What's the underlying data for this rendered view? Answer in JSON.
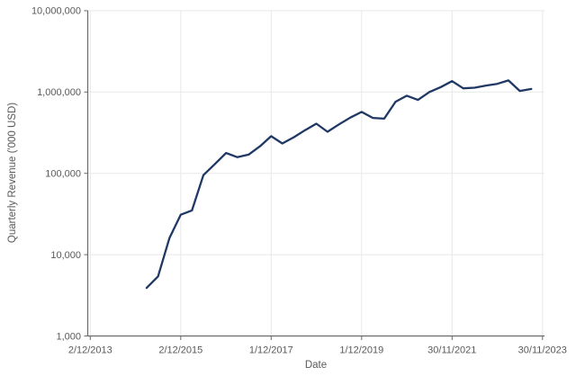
{
  "chart_data": {
    "type": "line",
    "title": "",
    "xlabel": "Date",
    "ylabel": "Quarterly Revenue ('000 USD)",
    "y_scale": "log10",
    "ylim": [
      1000,
      10000000
    ],
    "y_ticks": [
      {
        "value": 1000,
        "label": "1,000"
      },
      {
        "value": 10000,
        "label": "10,000"
      },
      {
        "value": 100000,
        "label": "100,000"
      },
      {
        "value": 1000000,
        "label": "1,000,000"
      },
      {
        "value": 10000000,
        "label": "10,000,000"
      }
    ],
    "x_domain": [
      "2/12/2013",
      "30/11/2023"
    ],
    "x_ticks": [
      "2/12/2013",
      "2/12/2015",
      "1/12/2017",
      "1/12/2019",
      "30/11/2021",
      "30/11/2023"
    ],
    "grid": true,
    "legend": "none",
    "series": [
      {
        "name": "Quarterly Revenue",
        "color": "#1f3864",
        "points": [
          {
            "date": "2/3/2015",
            "value": 3900
          },
          {
            "date": "2/6/2015",
            "value": 5400
          },
          {
            "date": "2/9/2015",
            "value": 16000
          },
          {
            "date": "2/12/2015",
            "value": 31000
          },
          {
            "date": "2/3/2016",
            "value": 35000
          },
          {
            "date": "2/6/2016",
            "value": 95000
          },
          {
            "date": "2/9/2016",
            "value": 130000
          },
          {
            "date": "2/12/2016",
            "value": 178000
          },
          {
            "date": "2/3/2017",
            "value": 158000
          },
          {
            "date": "2/6/2017",
            "value": 170000
          },
          {
            "date": "2/9/2017",
            "value": 215000
          },
          {
            "date": "1/12/2017",
            "value": 286000
          },
          {
            "date": "1/3/2018",
            "value": 233000
          },
          {
            "date": "1/6/2018",
            "value": 278000
          },
          {
            "date": "1/9/2018",
            "value": 340000
          },
          {
            "date": "1/12/2018",
            "value": 408000
          },
          {
            "date": "1/3/2019",
            "value": 324000
          },
          {
            "date": "1/6/2019",
            "value": 400000
          },
          {
            "date": "1/9/2019",
            "value": 485000
          },
          {
            "date": "1/12/2019",
            "value": 570000
          },
          {
            "date": "1/3/2020",
            "value": 480000
          },
          {
            "date": "31/5/2020",
            "value": 470000
          },
          {
            "date": "31/8/2020",
            "value": 760000
          },
          {
            "date": "30/11/2020",
            "value": 900000
          },
          {
            "date": "28/2/2021",
            "value": 800000
          },
          {
            "date": "31/5/2021",
            "value": 1000000
          },
          {
            "date": "31/8/2021",
            "value": 1150000
          },
          {
            "date": "30/11/2021",
            "value": 1360000
          },
          {
            "date": "28/2/2022",
            "value": 1110000
          },
          {
            "date": "31/5/2022",
            "value": 1130000
          },
          {
            "date": "31/8/2022",
            "value": 1200000
          },
          {
            "date": "30/11/2022",
            "value": 1260000
          },
          {
            "date": "28/2/2023",
            "value": 1390000
          },
          {
            "date": "31/5/2023",
            "value": 1030000
          },
          {
            "date": "31/8/2023",
            "value": 1090000
          }
        ]
      }
    ]
  },
  "colors": {
    "background": "#ffffff",
    "line": "#1f3864",
    "axis": "#6a6a6a",
    "gridline": "#e8e8e8",
    "label_text": "#595959"
  }
}
